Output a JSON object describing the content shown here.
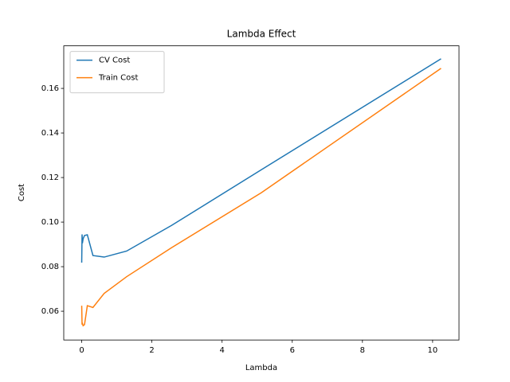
{
  "chart_data": {
    "type": "line",
    "title": "Lambda Effect",
    "x_label": "Lambda",
    "y_label": "Cost",
    "x": [
      0,
      0.01,
      0.02,
      0.04,
      0.08,
      0.16,
      0.32,
      0.64,
      1.28,
      2.56,
      5.12,
      10.24
    ],
    "series": [
      {
        "name": "CV Cost",
        "color": "#1f77b4",
        "values": [
          0.0818,
          0.0945,
          0.0905,
          0.0925,
          0.094,
          0.0943,
          0.085,
          0.0843,
          0.087,
          0.0985,
          0.1235,
          0.1733
        ]
      },
      {
        "name": "Train Cost",
        "color": "#ff7f0e",
        "values": [
          0.0625,
          0.054,
          0.0545,
          0.0535,
          0.054,
          0.0625,
          0.0617,
          0.068,
          0.0755,
          0.0885,
          0.1132,
          0.169
        ]
      }
    ],
    "xlim": [
      -0.512,
      10.752
    ],
    "ylim": [
      0.0471,
      0.1791
    ],
    "xticks": [
      0,
      2,
      4,
      6,
      8,
      10
    ],
    "yticks": [
      0.06,
      0.08,
      {
        "value": 0.1,
        "label": "0.10"
      },
      0.12,
      0.14,
      0.16
    ],
    "legend": "upper left"
  }
}
